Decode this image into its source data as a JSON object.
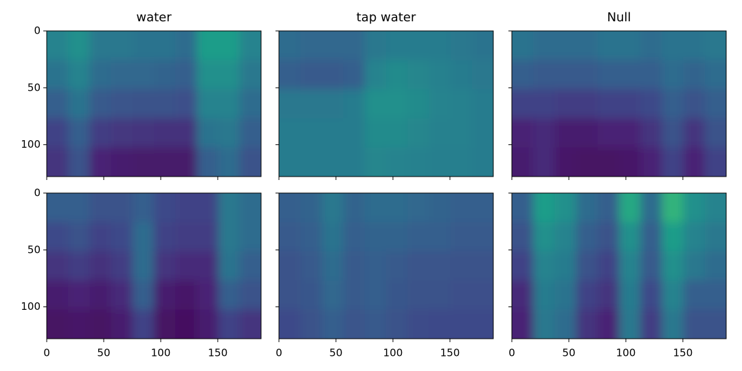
{
  "chart_data": [
    {
      "type": "heatmap",
      "title": "water",
      "colormap": "viridis",
      "clim": [
        0,
        1
      ],
      "xlim": [
        0,
        188
      ],
      "ylim": [
        128,
        0
      ],
      "xticks": [
        0,
        50,
        100,
        150
      ],
      "yticks": [
        0,
        50,
        100
      ],
      "xticklabels": false,
      "yticklabels": true,
      "values": [
        [
          0.45,
          0.5,
          0.4,
          0.4,
          0.38,
          0.38,
          0.35,
          0.55,
          0.55,
          0.45
        ],
        [
          0.38,
          0.45,
          0.35,
          0.33,
          0.33,
          0.32,
          0.3,
          0.5,
          0.5,
          0.4
        ],
        [
          0.3,
          0.38,
          0.28,
          0.26,
          0.25,
          0.25,
          0.24,
          0.45,
          0.45,
          0.35
        ],
        [
          0.2,
          0.3,
          0.18,
          0.16,
          0.15,
          0.14,
          0.14,
          0.38,
          0.4,
          0.3
        ],
        [
          0.15,
          0.25,
          0.1,
          0.08,
          0.07,
          0.07,
          0.07,
          0.3,
          0.35,
          0.25
        ]
      ]
    },
    {
      "type": "heatmap",
      "title": "tap water",
      "colormap": "viridis",
      "clim": [
        0,
        1
      ],
      "xlim": [
        0,
        188
      ],
      "ylim": [
        128,
        0
      ],
      "xticks": [
        0,
        50,
        100,
        150
      ],
      "yticks": [
        0,
        50,
        100
      ],
      "xticklabels": false,
      "yticklabels": false,
      "values": [
        [
          0.35,
          0.33,
          0.33,
          0.33,
          0.4,
          0.42,
          0.42,
          0.42,
          0.4,
          0.38
        ],
        [
          0.3,
          0.28,
          0.28,
          0.3,
          0.45,
          0.48,
          0.46,
          0.44,
          0.42,
          0.4
        ],
        [
          0.4,
          0.4,
          0.4,
          0.42,
          0.5,
          0.5,
          0.48,
          0.45,
          0.44,
          0.42
        ],
        [
          0.42,
          0.42,
          0.42,
          0.42,
          0.48,
          0.48,
          0.46,
          0.44,
          0.44,
          0.42
        ],
        [
          0.42,
          0.42,
          0.42,
          0.42,
          0.46,
          0.45,
          0.44,
          0.43,
          0.43,
          0.42
        ]
      ]
    },
    {
      "type": "heatmap",
      "title": "Null",
      "colormap": "viridis",
      "clim": [
        0,
        1
      ],
      "xlim": [
        0,
        188
      ],
      "ylim": [
        128,
        0
      ],
      "xticks": [
        0,
        50,
        100,
        150
      ],
      "yticks": [
        0,
        50,
        100
      ],
      "xticklabels": false,
      "yticklabels": false,
      "values": [
        [
          0.38,
          0.35,
          0.35,
          0.35,
          0.38,
          0.38,
          0.35,
          0.38,
          0.38,
          0.4
        ],
        [
          0.3,
          0.28,
          0.28,
          0.28,
          0.3,
          0.3,
          0.3,
          0.35,
          0.32,
          0.35
        ],
        [
          0.2,
          0.2,
          0.18,
          0.18,
          0.2,
          0.2,
          0.22,
          0.3,
          0.25,
          0.3
        ],
        [
          0.1,
          0.12,
          0.08,
          0.08,
          0.1,
          0.1,
          0.15,
          0.25,
          0.15,
          0.25
        ],
        [
          0.08,
          0.12,
          0.06,
          0.05,
          0.05,
          0.06,
          0.1,
          0.2,
          0.1,
          0.2
        ]
      ]
    },
    {
      "type": "heatmap",
      "colormap": "viridis",
      "clim": [
        0,
        1
      ],
      "xlim": [
        0,
        188
      ],
      "ylim": [
        128,
        0
      ],
      "xticks": [
        0,
        50,
        100,
        150
      ],
      "yticks": [
        0,
        50,
        100
      ],
      "xticklabels": true,
      "yticklabels": true,
      "values": [
        [
          0.3,
          0.3,
          0.25,
          0.25,
          0.3,
          0.22,
          0.2,
          0.2,
          0.4,
          0.35
        ],
        [
          0.22,
          0.25,
          0.2,
          0.22,
          0.35,
          0.2,
          0.18,
          0.18,
          0.4,
          0.35
        ],
        [
          0.15,
          0.18,
          0.14,
          0.18,
          0.35,
          0.15,
          0.12,
          0.12,
          0.38,
          0.3
        ],
        [
          0.08,
          0.1,
          0.08,
          0.12,
          0.3,
          0.08,
          0.06,
          0.1,
          0.3,
          0.25
        ],
        [
          0.05,
          0.06,
          0.05,
          0.08,
          0.2,
          0.05,
          0.04,
          0.08,
          0.2,
          0.15
        ]
      ]
    },
    {
      "type": "heatmap",
      "colormap": "viridis",
      "clim": [
        0,
        1
      ],
      "xlim": [
        0,
        188
      ],
      "ylim": [
        128,
        0
      ],
      "xticks": [
        0,
        50,
        100,
        150
      ],
      "yticks": [
        0,
        50,
        100
      ],
      "xticklabels": true,
      "yticklabels": false,
      "values": [
        [
          0.3,
          0.32,
          0.4,
          0.32,
          0.35,
          0.35,
          0.33,
          0.32,
          0.3,
          0.3
        ],
        [
          0.28,
          0.3,
          0.38,
          0.3,
          0.32,
          0.32,
          0.3,
          0.3,
          0.28,
          0.28
        ],
        [
          0.25,
          0.28,
          0.35,
          0.28,
          0.3,
          0.28,
          0.26,
          0.26,
          0.25,
          0.25
        ],
        [
          0.25,
          0.27,
          0.33,
          0.28,
          0.3,
          0.27,
          0.25,
          0.25,
          0.24,
          0.24
        ],
        [
          0.22,
          0.25,
          0.3,
          0.26,
          0.28,
          0.25,
          0.23,
          0.22,
          0.22,
          0.22
        ]
      ]
    },
    {
      "type": "heatmap",
      "colormap": "viridis",
      "clim": [
        0,
        1
      ],
      "xlim": [
        0,
        188
      ],
      "ylim": [
        128,
        0
      ],
      "xticks": [
        0,
        50,
        100,
        150
      ],
      "yticks": [
        0,
        50,
        100
      ],
      "xticklabels": true,
      "yticklabels": false,
      "values": [
        [
          0.3,
          0.55,
          0.5,
          0.35,
          0.3,
          0.6,
          0.35,
          0.65,
          0.5,
          0.45
        ],
        [
          0.25,
          0.5,
          0.45,
          0.3,
          0.25,
          0.5,
          0.3,
          0.55,
          0.45,
          0.4
        ],
        [
          0.2,
          0.45,
          0.42,
          0.25,
          0.2,
          0.45,
          0.28,
          0.5,
          0.4,
          0.35
        ],
        [
          0.12,
          0.42,
          0.38,
          0.2,
          0.15,
          0.42,
          0.22,
          0.45,
          0.3,
          0.3
        ],
        [
          0.1,
          0.4,
          0.35,
          0.15,
          0.1,
          0.4,
          0.18,
          0.4,
          0.25,
          0.25
        ]
      ]
    }
  ]
}
